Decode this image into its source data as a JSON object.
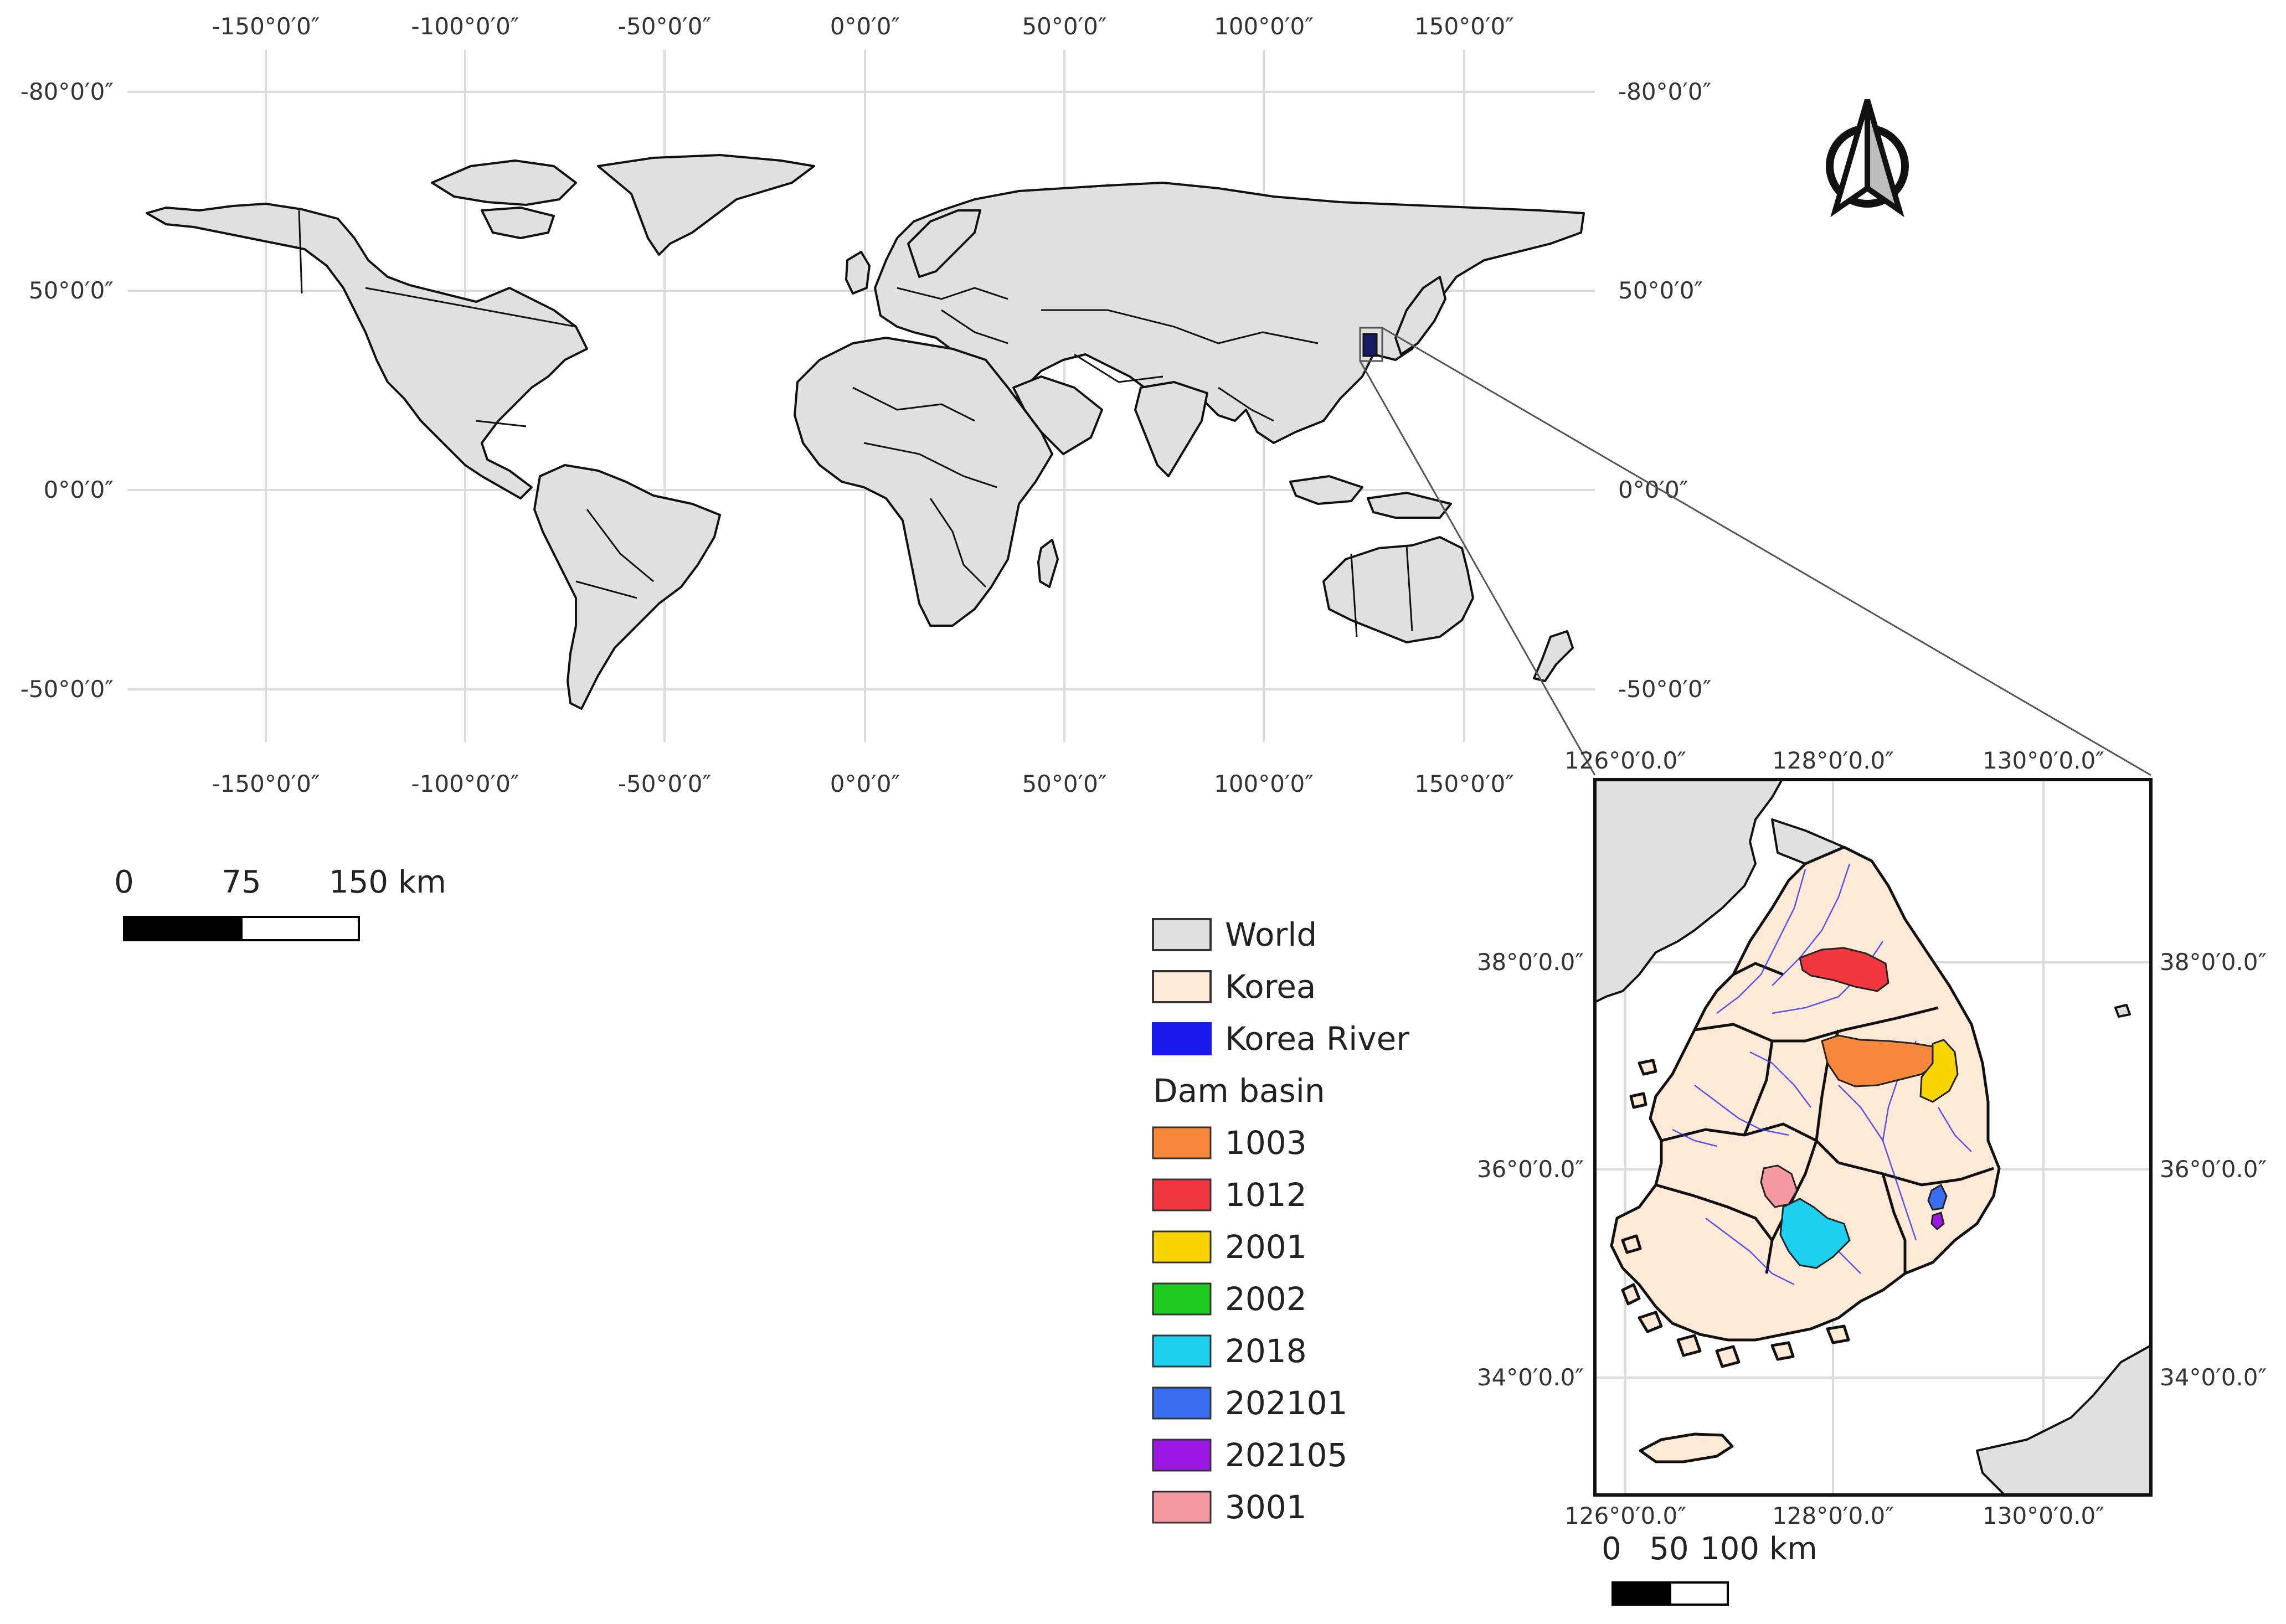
{
  "world_map": {
    "x_ticks_top": [
      "-150°0′0″",
      "-100°0′0″",
      "-50°0′0″",
      "0°0′0″",
      "50°0′0″",
      "100°0′0″",
      "150°0′0″"
    ],
    "x_ticks_bottom": [
      "-150°0′0″",
      "-100°0′0″",
      "-50°0′0″",
      "0°0′0″",
      "50°0′0″",
      "100°0′0″",
      "150°0′0″"
    ],
    "y_ticks_left": [
      "-80°0′0″",
      "50°0′0″",
      "0°0′0″",
      "-50°0′0″"
    ],
    "y_ticks_right": [
      "-80°0′0″",
      "50°0′0″",
      "0°0′0″",
      "-50°0′0″"
    ],
    "land_color": "#e0e0e0"
  },
  "scale_bar_world": {
    "labels": [
      "0",
      "75",
      "150 km"
    ]
  },
  "inset_map": {
    "x_ticks_top": [
      "126°0′0.0″",
      "128°0′0.0″",
      "130°0′0.0″"
    ],
    "x_ticks_bottom": [
      "126°0′0.0″",
      "128°0′0.0″",
      "130°0′0.0″"
    ],
    "y_ticks_left": [
      "38°0′0.0″",
      "36°0′0.0″",
      "34°0′0.0″"
    ],
    "y_ticks_right": [
      "38°0′0.0″",
      "36°0′0.0″",
      "34°0′0.0″"
    ]
  },
  "scale_bar_inset": {
    "labels": [
      "0",
      "50",
      "100 km"
    ]
  },
  "north_arrow": {
    "icon": "north-arrow-icon"
  },
  "legend": {
    "items": [
      {
        "label": "World",
        "color": "#e0e0e0"
      },
      {
        "label": "Korea",
        "color": "#fde9d6"
      },
      {
        "label": "Korea River",
        "color": "#1a1aee"
      }
    ],
    "group_title": "Dam basin",
    "basins": [
      {
        "label": "1003",
        "color": "#f5883a"
      },
      {
        "label": "1012",
        "color": "#f2373f"
      },
      {
        "label": "2001",
        "color": "#f7d400"
      },
      {
        "label": "2002",
        "color": "#1fcc1f"
      },
      {
        "label": "2018",
        "color": "#1ed0f0"
      },
      {
        "label": "202101",
        "color": "#3a6ef0"
      },
      {
        "label": "202105",
        "color": "#9b17e6"
      },
      {
        "label": "3001",
        "color": "#f59aa0"
      }
    ]
  }
}
